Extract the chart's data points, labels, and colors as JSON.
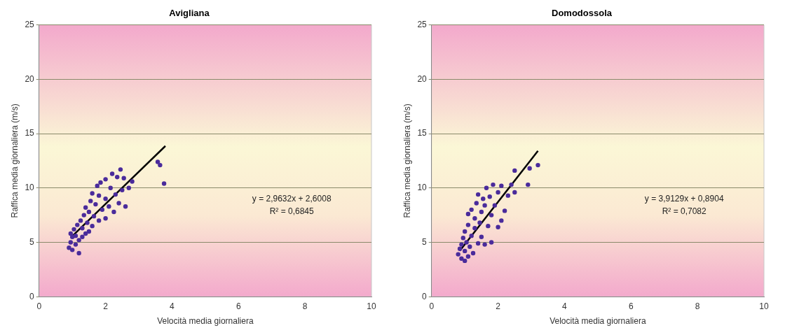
{
  "chart_data": [
    {
      "type": "scatter",
      "title": "Avigliana",
      "xlabel": "Velocità media giornaliera",
      "ylabel": "Raffica media giornaliera (m/s)",
      "xlim": [
        0,
        10
      ],
      "xticks": [
        0,
        2,
        4,
        6,
        8,
        10
      ],
      "ylim": [
        0,
        25
      ],
      "yticks": [
        0,
        5,
        10,
        15,
        20,
        25
      ],
      "grid": "y",
      "legend": false,
      "annotations": [
        "y = 2,9632x + 2,6008",
        "R² = 0,6845"
      ],
      "series": [
        {
          "color": "#4a2b9b",
          "marker": "circle",
          "x": [
            0.9,
            0.95,
            0.95,
            1.0,
            1.0,
            1.05,
            1.1,
            1.1,
            1.15,
            1.2,
            1.2,
            1.25,
            1.3,
            1.3,
            1.35,
            1.4,
            1.4,
            1.45,
            1.5,
            1.5,
            1.55,
            1.6,
            1.6,
            1.65,
            1.7,
            1.75,
            1.8,
            1.8,
            1.85,
            1.9,
            2.0,
            2.0,
            2.0,
            2.1,
            2.15,
            2.2,
            2.25,
            2.3,
            2.35,
            2.4,
            2.45,
            2.5,
            2.55,
            2.6,
            2.7,
            2.8,
            3.57,
            3.64,
            3.76
          ],
          "values": [
            4.5,
            5.0,
            5.8,
            4.3,
            5.5,
            6.2,
            4.8,
            5.6,
            6.6,
            4.0,
            5.2,
            7.0,
            5.5,
            6.3,
            7.5,
            5.8,
            8.2,
            6.8,
            6.0,
            7.8,
            8.8,
            6.5,
            9.5,
            7.4,
            8.5,
            10.2,
            7.0,
            9.3,
            10.5,
            8.0,
            7.2,
            9.0,
            10.8,
            8.3,
            10.0,
            11.3,
            7.8,
            9.4,
            11.0,
            8.6,
            11.7,
            9.8,
            10.9,
            8.3,
            10.0,
            10.6,
            12.4,
            12.1,
            10.4
          ]
        },
        {
          "type": "line",
          "color": "#000000",
          "marker": "none",
          "x": [
            0.95,
            3.8
          ],
          "values": [
            5.42,
            13.86
          ]
        }
      ]
    },
    {
      "type": "scatter",
      "title": "Domodossola",
      "xlabel": "Velocità media giornaliera",
      "ylabel": "Raffica media giornaliera (m/s)",
      "xlim": [
        0,
        10
      ],
      "xticks": [
        0,
        2,
        4,
        6,
        8,
        10
      ],
      "ylim": [
        0,
        25
      ],
      "yticks": [
        0,
        5,
        10,
        15,
        20,
        25
      ],
      "grid": "y",
      "legend": false,
      "annotations": [
        "y = 3,9129x + 0,8904",
        "R² = 0,7082"
      ],
      "series": [
        {
          "color": "#4a2b9b",
          "marker": "circle",
          "x": [
            0.8,
            0.85,
            0.9,
            0.9,
            0.95,
            1.0,
            1.0,
            1.0,
            1.05,
            1.1,
            1.1,
            1.1,
            1.15,
            1.2,
            1.2,
            1.25,
            1.3,
            1.3,
            1.35,
            1.4,
            1.4,
            1.45,
            1.5,
            1.5,
            1.55,
            1.6,
            1.6,
            1.65,
            1.7,
            1.75,
            1.8,
            1.8,
            1.85,
            1.9,
            2.0,
            2.0,
            2.1,
            2.1,
            2.2,
            2.3,
            2.4,
            2.5,
            2.5,
            2.9,
            2.95,
            3.2
          ],
          "values": [
            3.9,
            4.4,
            3.5,
            4.8,
            5.4,
            3.3,
            4.2,
            6.0,
            5.0,
            3.7,
            6.6,
            7.6,
            4.6,
            5.6,
            8.0,
            4.0,
            6.3,
            7.2,
            8.6,
            4.9,
            9.4,
            6.8,
            5.5,
            7.8,
            9.0,
            4.8,
            8.4,
            10.0,
            6.5,
            9.2,
            5.0,
            7.5,
            10.3,
            8.4,
            6.4,
            9.6,
            7.0,
            10.2,
            7.9,
            9.3,
            10.3,
            9.6,
            11.6,
            10.3,
            11.8,
            12.1
          ]
        },
        {
          "type": "line",
          "color": "#000000",
          "marker": "none",
          "x": [
            0.85,
            3.2
          ],
          "values": [
            4.22,
            13.41
          ]
        }
      ]
    }
  ]
}
